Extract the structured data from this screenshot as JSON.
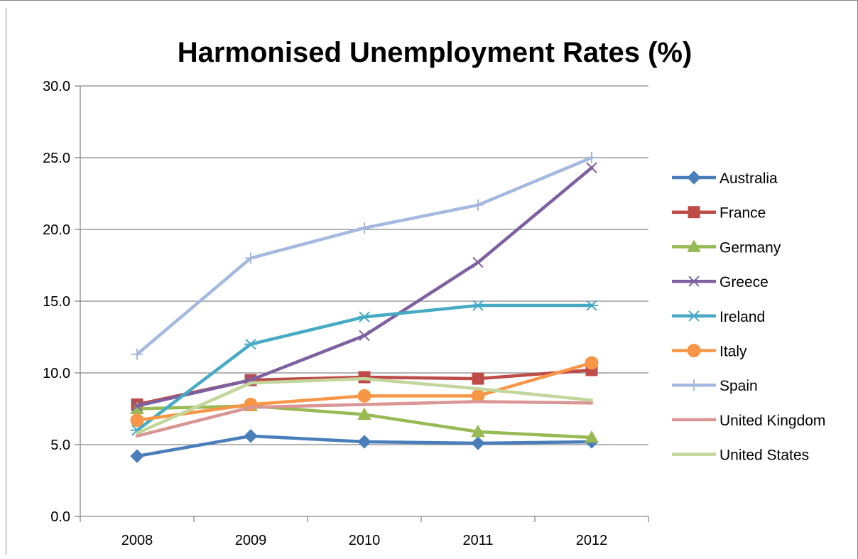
{
  "chart_data": {
    "type": "line",
    "title": "Harmonised Unemployment Rates (%)",
    "xlabel": "",
    "ylabel": "",
    "categories": [
      "2008",
      "2009",
      "2010",
      "2011",
      "2012"
    ],
    "ylim": [
      0,
      30
    ],
    "yticks": [
      "0.0",
      "5.0",
      "10.0",
      "15.0",
      "20.0",
      "25.0",
      "30.0"
    ],
    "grid": true,
    "legend_position": "right",
    "series": [
      {
        "name": "Australia",
        "color": "#4A7EBB",
        "marker": "diamond",
        "values": [
          4.2,
          5.6,
          5.2,
          5.1,
          5.2
        ]
      },
      {
        "name": "France",
        "color": "#BE4B48",
        "marker": "square",
        "values": [
          7.8,
          9.5,
          9.7,
          9.6,
          10.2
        ]
      },
      {
        "name": "Germany",
        "color": "#98B954",
        "marker": "triangle",
        "values": [
          7.5,
          7.7,
          7.1,
          5.9,
          5.5
        ]
      },
      {
        "name": "Greece",
        "color": "#7D60A0",
        "marker": "x",
        "values": [
          7.7,
          9.5,
          12.6,
          17.7,
          24.3
        ]
      },
      {
        "name": "Ireland",
        "color": "#46AAC5",
        "marker": "star",
        "values": [
          6.0,
          12.0,
          13.9,
          14.7,
          14.7
        ]
      },
      {
        "name": "Italy",
        "color": "#F79646",
        "marker": "circle",
        "values": [
          6.7,
          7.8,
          8.4,
          8.4,
          10.7
        ]
      },
      {
        "name": "Spain",
        "color": "#A5B8E0",
        "marker": "plus",
        "values": [
          11.3,
          18.0,
          20.1,
          21.7,
          25.0
        ]
      },
      {
        "name": "United Kingdom",
        "color": "#DA9694",
        "marker": "none",
        "values": [
          5.6,
          7.6,
          7.8,
          8.0,
          7.9
        ]
      },
      {
        "name": "United States",
        "color": "#C3D69B",
        "marker": "none",
        "values": [
          5.8,
          9.3,
          9.6,
          8.9,
          8.1
        ]
      }
    ]
  }
}
